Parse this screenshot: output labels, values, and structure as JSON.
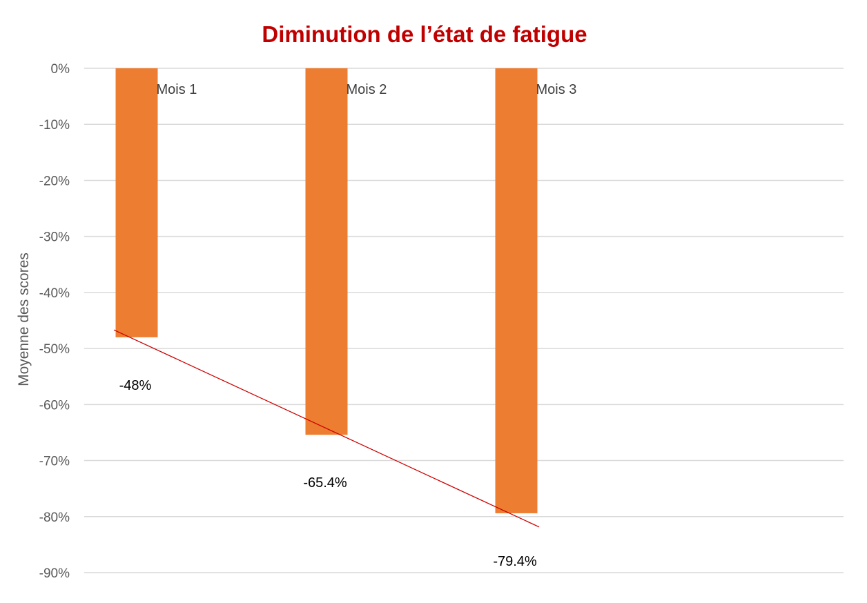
{
  "chart_data": {
    "type": "bar",
    "title": "Diminution de l’état de fatigue",
    "xlabel": "",
    "ylabel": "Moyenne des scores",
    "categories": [
      "Mois 1",
      "Mois 2",
      "Mois 3"
    ],
    "series": [
      {
        "values": [
          -48,
          -65.4,
          -79.4
        ]
      }
    ],
    "data_labels": [
      "-48%",
      "-65.4%",
      "-79.4%"
    ],
    "yticks": [
      "0%",
      "-10%",
      "-20%",
      "-30%",
      "-40%",
      "-50%",
      "-60%",
      "-70%",
      "-80%",
      "-90%"
    ],
    "ylim": [
      -90,
      0
    ],
    "grid": true,
    "legend": "none",
    "trendline": {
      "type": "linear",
      "color": "#CC0000"
    },
    "colors": {
      "bar": "#ED7D31",
      "title": "#C00000",
      "grid": "#D9D9D9",
      "trendline": "#CC0000"
    }
  }
}
